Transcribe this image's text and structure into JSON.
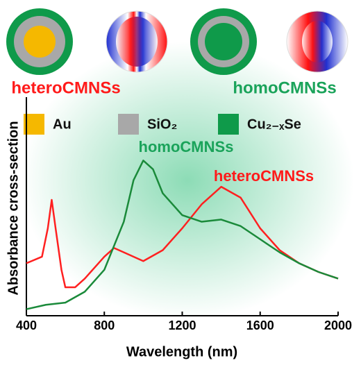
{
  "chart_data": {
    "type": "line",
    "x_label": "Wavelength (nm)",
    "y_label": "Absorbance cross-section",
    "xlim": [
      400,
      2000
    ],
    "xticks": [
      400,
      800,
      1200,
      1600,
      2000
    ],
    "ylim": [
      0,
      1
    ],
    "header_labels": [
      {
        "text": "heteroCMNSs",
        "color": "#ff1a1a"
      },
      {
        "text": "homoCMNSs",
        "color": "#1aa35a"
      }
    ],
    "legend_items": [
      {
        "label": "Au",
        "color": "#f5b800"
      },
      {
        "label": "SiO₂",
        "color": "#a8a8a8"
      },
      {
        "label": "Cu₂₋ₓSe",
        "color": "#0f9a4a"
      }
    ],
    "series": [
      {
        "name": "heteroCMNSs",
        "color": "#ff2020",
        "x": [
          400,
          480,
          510,
          530,
          550,
          580,
          600,
          650,
          700,
          800,
          850,
          900,
          1000,
          1100,
          1200,
          1300,
          1400,
          1500,
          1600,
          1700,
          1800,
          1900,
          2000
        ],
        "values": [
          0.24,
          0.27,
          0.4,
          0.53,
          0.4,
          0.21,
          0.13,
          0.13,
          0.17,
          0.27,
          0.31,
          0.29,
          0.25,
          0.3,
          0.4,
          0.51,
          0.59,
          0.54,
          0.4,
          0.3,
          0.24,
          0.2,
          0.17
        ]
      },
      {
        "name": "homoCMNSs",
        "color": "#1a8a3a",
        "x": [
          400,
          500,
          600,
          700,
          800,
          900,
          950,
          1000,
          1050,
          1100,
          1200,
          1300,
          1400,
          1500,
          1600,
          1700,
          1800,
          1900,
          2000
        ],
        "values": [
          0.03,
          0.05,
          0.06,
          0.11,
          0.21,
          0.43,
          0.62,
          0.71,
          0.67,
          0.56,
          0.46,
          0.43,
          0.44,
          0.41,
          0.35,
          0.29,
          0.24,
          0.2,
          0.17
        ]
      }
    ]
  }
}
